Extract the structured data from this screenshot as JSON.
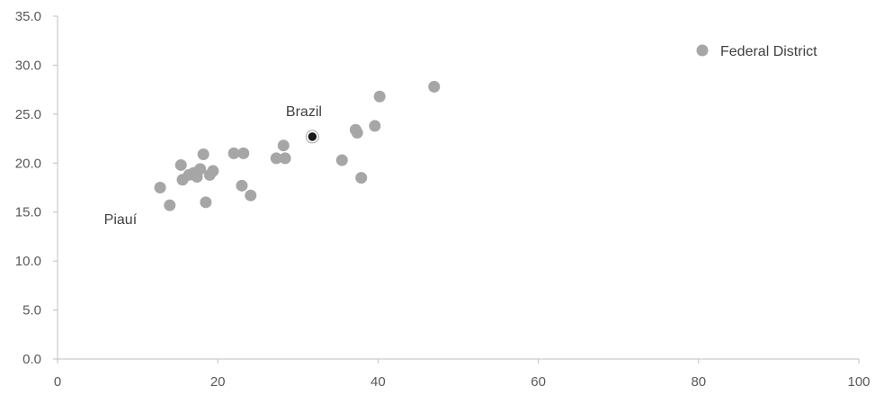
{
  "chart_data": {
    "type": "scatter",
    "title": "",
    "xlabel": "",
    "ylabel": "",
    "xlim": [
      0,
      100
    ],
    "ylim": [
      0,
      35
    ],
    "x_ticks": [
      0,
      20,
      40,
      60,
      80,
      100
    ],
    "x_tick_labels": [
      "0",
      "20",
      "40",
      "60",
      "80",
      "100"
    ],
    "y_ticks": [
      0,
      5,
      10,
      15,
      20,
      25,
      30,
      35
    ],
    "y_tick_labels": [
      "0.0",
      "5.0",
      "10.0",
      "15.0",
      "20.0",
      "25.0",
      "30.0",
      "35.0"
    ],
    "grid": false,
    "legend": {
      "position": "top-right",
      "entries": [
        "Federal District"
      ]
    },
    "series": [
      {
        "name": "Federal District",
        "color": "#a6a6a6",
        "points": [
          {
            "x": 12.8,
            "y": 17.5
          },
          {
            "x": 14.0,
            "y": 15.7
          },
          {
            "x": 15.4,
            "y": 19.8
          },
          {
            "x": 15.6,
            "y": 18.3
          },
          {
            "x": 16.4,
            "y": 18.8
          },
          {
            "x": 17.0,
            "y": 19.0
          },
          {
            "x": 17.4,
            "y": 18.6
          },
          {
            "x": 17.8,
            "y": 19.4
          },
          {
            "x": 18.2,
            "y": 20.9
          },
          {
            "x": 18.5,
            "y": 16.0
          },
          {
            "x": 19.0,
            "y": 18.8
          },
          {
            "x": 19.4,
            "y": 19.2
          },
          {
            "x": 22.0,
            "y": 21.0
          },
          {
            "x": 23.0,
            "y": 17.7
          },
          {
            "x": 23.2,
            "y": 21.0
          },
          {
            "x": 24.1,
            "y": 16.7
          },
          {
            "x": 27.3,
            "y": 20.5
          },
          {
            "x": 28.2,
            "y": 21.8
          },
          {
            "x": 28.4,
            "y": 20.5
          },
          {
            "x": 35.5,
            "y": 20.3
          },
          {
            "x": 37.2,
            "y": 23.4
          },
          {
            "x": 37.4,
            "y": 23.1
          },
          {
            "x": 37.9,
            "y": 18.5
          },
          {
            "x": 39.6,
            "y": 23.8
          },
          {
            "x": 40.2,
            "y": 26.8
          },
          {
            "x": 47.0,
            "y": 27.8
          }
        ]
      },
      {
        "name": "",
        "color": "#1a1a1a",
        "points": [
          {
            "x": 31.8,
            "y": 22.7
          }
        ]
      }
    ],
    "annotations": [
      {
        "text": "Brazil",
        "x": 28.5,
        "y": 24.8
      },
      {
        "text": "Piauí",
        "x": 5.8,
        "y": 13.8
      }
    ]
  }
}
